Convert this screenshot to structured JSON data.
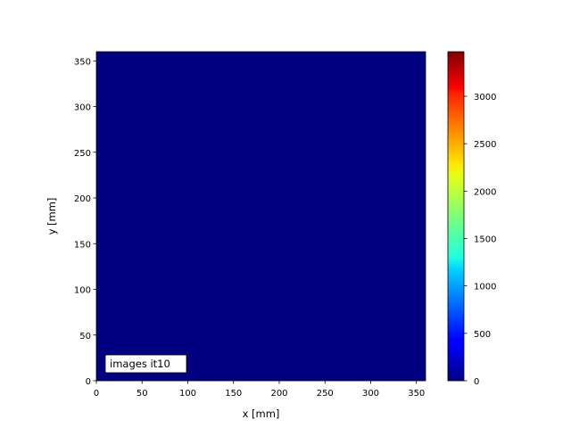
{
  "chart_data": {
    "type": "heatmap",
    "xlabel": "x [mm]",
    "ylabel": "y [mm]",
    "xlim": [
      0,
      360
    ],
    "ylim": [
      0,
      360
    ],
    "xticks": [
      0,
      50,
      100,
      150,
      200,
      250,
      300,
      350
    ],
    "yticks": [
      0,
      50,
      100,
      150,
      200,
      250,
      300,
      350
    ],
    "z_values": "all 0",
    "z_uniform": 0,
    "colormap": "jet",
    "colorbar": {
      "range": [
        0,
        3470
      ],
      "ticks": [
        0,
        500,
        1000,
        1500,
        2000,
        2500,
        3000
      ]
    },
    "annotation": "images it10",
    "grid": false
  }
}
